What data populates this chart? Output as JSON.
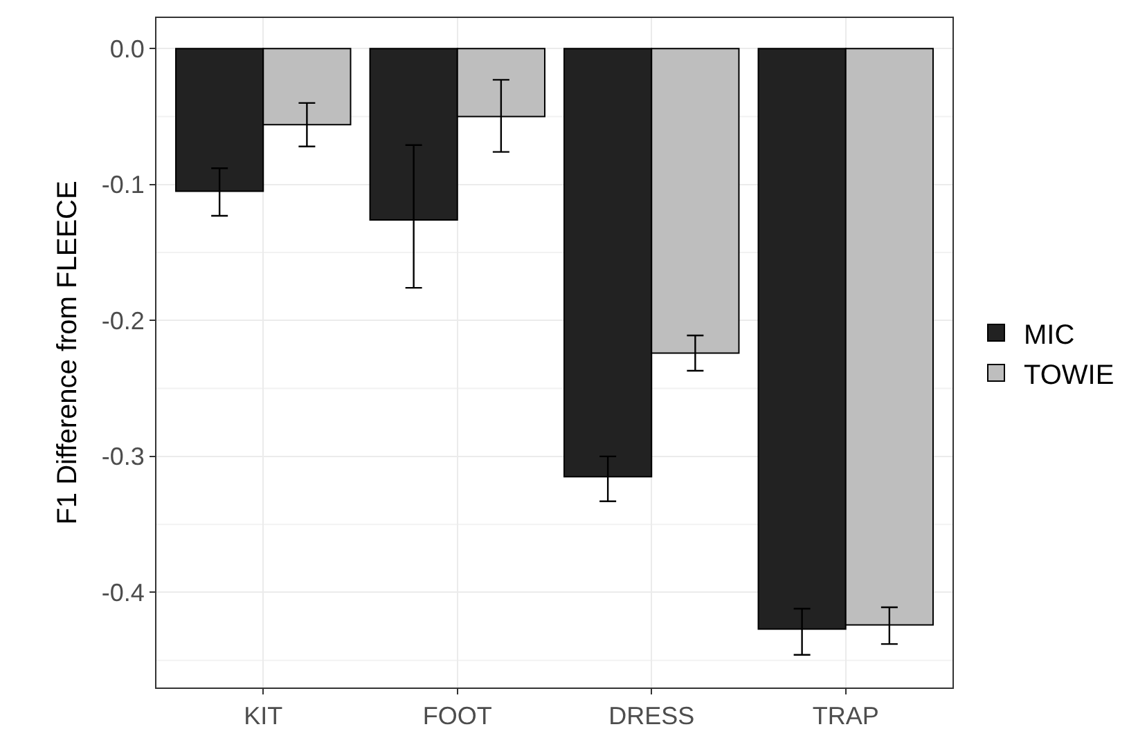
{
  "chart_data": {
    "type": "bar",
    "ylabel": "F1 Difference from FLEECE",
    "categories": [
      "KIT",
      "FOOT",
      "DRESS",
      "TRAP"
    ],
    "series": [
      {
        "name": "MIC",
        "color": "#222222",
        "values": [
          -0.105,
          -0.126,
          -0.315,
          -0.427
        ],
        "errors": [
          [
            -0.123,
            -0.088
          ],
          [
            -0.176,
            -0.071
          ],
          [
            -0.333,
            -0.3
          ],
          [
            -0.446,
            -0.412
          ]
        ]
      },
      {
        "name": "TOWIE",
        "color": "#bebebe",
        "values": [
          -0.056,
          -0.05,
          -0.224,
          -0.424
        ],
        "errors": [
          [
            -0.072,
            -0.04
          ],
          [
            -0.076,
            -0.023
          ],
          [
            -0.237,
            -0.211
          ],
          [
            -0.438,
            -0.411
          ]
        ]
      }
    ],
    "ylim": [
      -0.47,
      0.0225
    ],
    "yticks": [
      {
        "value": 0,
        "label": "0.0"
      },
      -0.1,
      -0.2,
      -0.3,
      -0.4
    ],
    "grid": true,
    "legend": "right"
  }
}
